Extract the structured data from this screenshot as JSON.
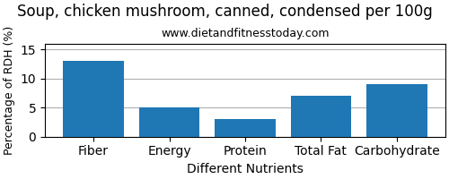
{
  "chart_data": {
    "type": "bar",
    "title": "Soup, chicken mushroom, canned, condensed per 100g",
    "subtitle": "www.dietandfitnesstoday.com",
    "xlabel": "Different Nutrients",
    "ylabel": "Percentage of RDH (%)",
    "categories": [
      "Fiber",
      "Energy",
      "Protein",
      "Total Fat",
      "Carbohydrate"
    ],
    "values": [
      13,
      5,
      3,
      7,
      9
    ],
    "ylim": [
      0,
      16
    ],
    "yticks": [
      0,
      5,
      10,
      15
    ],
    "grid": true
  }
}
